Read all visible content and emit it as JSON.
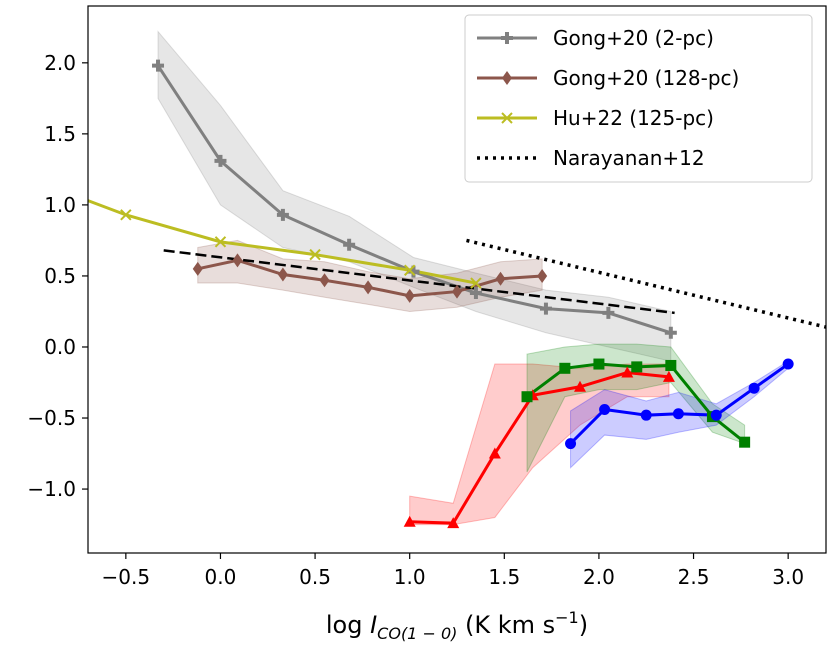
{
  "chart_data": {
    "type": "line",
    "title": "",
    "xlabel": {
      "prefix": "log ",
      "var": "I",
      "sub": "CO(1 − 0)",
      "units": " (K km s",
      "exp": "−1",
      "close": ")"
    },
    "ylabel": "",
    "xlim": [
      -0.7,
      3.2
    ],
    "ylim": [
      -1.45,
      2.4
    ],
    "xticks": [
      -0.5,
      0.0,
      0.5,
      1.0,
      1.5,
      2.0,
      2.5,
      3.0
    ],
    "xtick_labels": [
      "−0.5",
      "0.0",
      "0.5",
      "1.0",
      "1.5",
      "2.0",
      "2.5",
      "3.0"
    ],
    "yticks": [
      -1.0,
      -0.5,
      0.0,
      0.5,
      1.0,
      1.5,
      2.0
    ],
    "ytick_labels": [
      "−1.0",
      "−0.5",
      "0.0",
      "0.5",
      "1.0",
      "1.5",
      "2.0"
    ],
    "legend_position": "top-right",
    "series": [
      {
        "name": "Gong+20 (2-pc)",
        "legend": true,
        "color": "#808080",
        "marker": "plus",
        "x": [
          -0.33,
          0.0,
          0.33,
          0.68,
          1.02,
          1.35,
          1.72,
          2.05,
          2.38
        ],
        "y": [
          1.98,
          1.31,
          0.93,
          0.72,
          0.53,
          0.38,
          0.27,
          0.24,
          0.1
        ],
        "band_lower": [
          1.75,
          1.0,
          0.7,
          0.6,
          0.42,
          0.25,
          0.1,
          0.0,
          -0.1
        ],
        "band_upper": [
          2.22,
          1.7,
          1.1,
          0.92,
          0.63,
          0.52,
          0.4,
          0.35,
          0.25
        ]
      },
      {
        "name": "Gong+20 (128-pc)",
        "legend": true,
        "color": "#8c564b",
        "marker": "diamond",
        "x": [
          -0.12,
          0.09,
          0.33,
          0.55,
          0.78,
          1.0,
          1.25,
          1.48,
          1.7
        ],
        "y": [
          0.55,
          0.61,
          0.51,
          0.47,
          0.42,
          0.36,
          0.39,
          0.48,
          0.5
        ],
        "band_lower": [
          0.45,
          0.45,
          0.4,
          0.35,
          0.3,
          0.25,
          0.28,
          0.35,
          0.4
        ],
        "band_upper": [
          0.7,
          0.75,
          0.62,
          0.6,
          0.53,
          0.48,
          0.52,
          0.6,
          0.62
        ]
      },
      {
        "name": "Hu+22 (125-pc)",
        "legend": true,
        "color": "#bcbd22",
        "marker": "x",
        "x": [
          -0.7,
          -0.5,
          0.0,
          0.5,
          1.0,
          1.35
        ],
        "y": [
          1.03,
          0.93,
          0.74,
          0.65,
          0.54,
          0.45
        ]
      },
      {
        "name": "Narayanan+12",
        "legend": true,
        "color": "#000000",
        "style": "dotted",
        "x": [
          1.3,
          3.2
        ],
        "y": [
          0.75,
          0.14
        ]
      },
      {
        "name": "fit",
        "legend": false,
        "color": "#000000",
        "style": "dashed",
        "x": [
          -0.3,
          2.4
        ],
        "y": [
          0.68,
          0.24
        ]
      },
      {
        "name": "red",
        "legend": false,
        "color": "#ff0000",
        "marker": "triangle",
        "x": [
          1.0,
          1.23,
          1.45,
          1.65,
          1.9,
          2.15,
          2.37
        ],
        "y": [
          -1.23,
          -1.24,
          -0.75,
          -0.34,
          -0.28,
          -0.18,
          -0.21
        ],
        "band_lower": [
          -1.25,
          -1.25,
          -1.2,
          -0.85,
          -0.55,
          -0.35,
          -0.35
        ],
        "band_upper": [
          -1.05,
          -1.1,
          -0.12,
          -0.12,
          -0.15,
          -0.12,
          -0.12
        ]
      },
      {
        "name": "green",
        "legend": false,
        "color": "#008000",
        "marker": "square",
        "x": [
          1.62,
          1.82,
          2.0,
          2.2,
          2.38,
          2.6,
          2.77
        ],
        "y": [
          -0.35,
          -0.15,
          -0.12,
          -0.14,
          -0.13,
          -0.49,
          -0.67
        ],
        "band_lower": [
          -0.88,
          -0.35,
          -0.3,
          -0.3,
          -0.25,
          -0.6,
          -0.68
        ],
        "band_upper": [
          -0.05,
          0.0,
          0.02,
          0.02,
          0.0,
          -0.4,
          -0.55
        ]
      },
      {
        "name": "blue",
        "legend": false,
        "color": "#0000ff",
        "marker": "circle",
        "x": [
          1.85,
          2.03,
          2.25,
          2.42,
          2.62,
          2.82,
          3.0
        ],
        "y": [
          -0.68,
          -0.44,
          -0.48,
          -0.47,
          -0.48,
          -0.29,
          -0.12
        ],
        "band_lower": [
          -0.85,
          -0.62,
          -0.65,
          -0.6,
          -0.55,
          -0.35,
          -0.15
        ],
        "band_upper": [
          -0.45,
          -0.3,
          -0.38,
          -0.32,
          -0.4,
          -0.25,
          -0.1
        ]
      }
    ]
  }
}
